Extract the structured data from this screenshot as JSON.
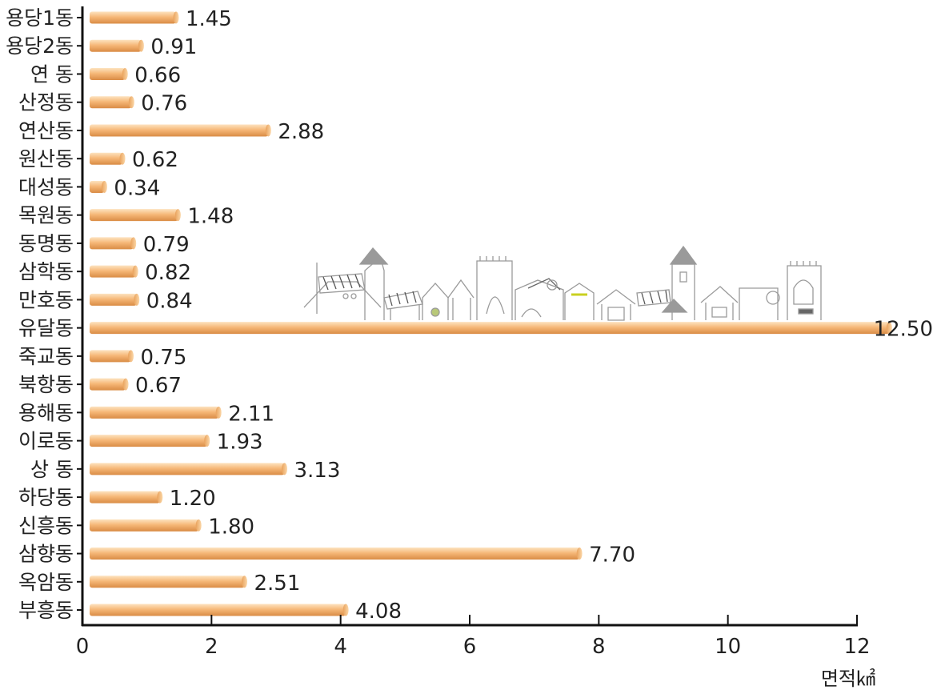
{
  "chart_data": {
    "type": "bar",
    "orientation": "horizontal",
    "categories": [
      "용당1동",
      "용당2동",
      "연 동",
      "산정동",
      "연산동",
      "원산동",
      "대성동",
      "목원동",
      "동명동",
      "삼학동",
      "만호동",
      "유달동",
      "죽교동",
      "북항동",
      "용해동",
      "이로동",
      "상 동",
      "하당동",
      "신흥동",
      "삼향동",
      "옥암동",
      "부흥동"
    ],
    "values": [
      1.45,
      0.91,
      0.66,
      0.76,
      2.88,
      0.62,
      0.34,
      1.48,
      0.79,
      0.82,
      0.84,
      12.5,
      0.75,
      0.67,
      2.11,
      1.93,
      3.13,
      1.2,
      1.8,
      7.7,
      2.51,
      4.08
    ],
    "value_labels": [
      "1.45",
      "0.91",
      "0.66",
      "0.76",
      "2.88",
      "0.62",
      "0.34",
      "1.48",
      "0.79",
      "0.82",
      "0.84",
      "12.50",
      "0.75",
      "0.67",
      "2.11",
      "1.93",
      "3.13",
      "1.20",
      "1.80",
      "7.70",
      "2.51",
      "4.08"
    ],
    "xticks": [
      "0",
      "2",
      "4",
      "6",
      "8",
      "10",
      "12"
    ],
    "xlim": [
      0,
      12
    ],
    "xlabel": "면적㎢",
    "title": "",
    "grid": false,
    "colors": {
      "bar_light": "#fde3c0",
      "bar_mid": "#f6b878",
      "bar_dark": "#d98c45",
      "axis": "#111111"
    }
  }
}
